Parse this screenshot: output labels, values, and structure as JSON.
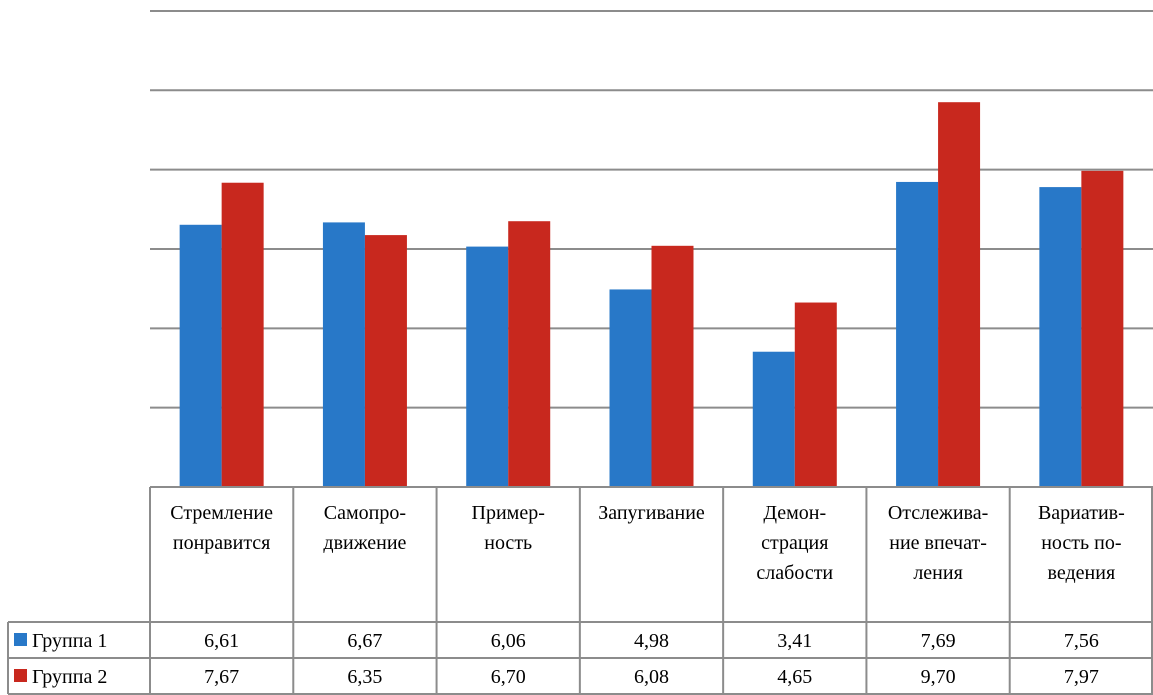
{
  "chart_data": {
    "type": "bar",
    "categories": [
      [
        "Стремление",
        "понравится"
      ],
      [
        "Самопро-",
        "движение"
      ],
      [
        "Пример-",
        "ность"
      ],
      [
        "Запугивание"
      ],
      [
        "Демон-",
        "страция",
        "слабости"
      ],
      [
        "Отслежива-",
        "ние впечат-",
        "ления"
      ],
      [
        "Вариатив-",
        "ность по-",
        "ведения"
      ]
    ],
    "series": [
      {
        "name": "Группа 1",
        "color": "#2878c8",
        "values": [
          6.61,
          6.67,
          6.06,
          4.98,
          3.41,
          7.69,
          7.56
        ],
        "labels": [
          "6,61",
          "6,67",
          "6,06",
          "4,98",
          "3,41",
          "7,69",
          "7,56"
        ]
      },
      {
        "name": "Группа 2",
        "color": "#c8281e",
        "values": [
          7.67,
          6.35,
          6.7,
          6.08,
          4.65,
          9.7,
          7.97
        ],
        "labels": [
          "7,67",
          "6,35",
          "6,70",
          "6,08",
          "4,65",
          "9,70",
          "7,97"
        ]
      }
    ],
    "ylim": [
      0,
      12
    ],
    "grid": true,
    "legend": "data-table"
  }
}
